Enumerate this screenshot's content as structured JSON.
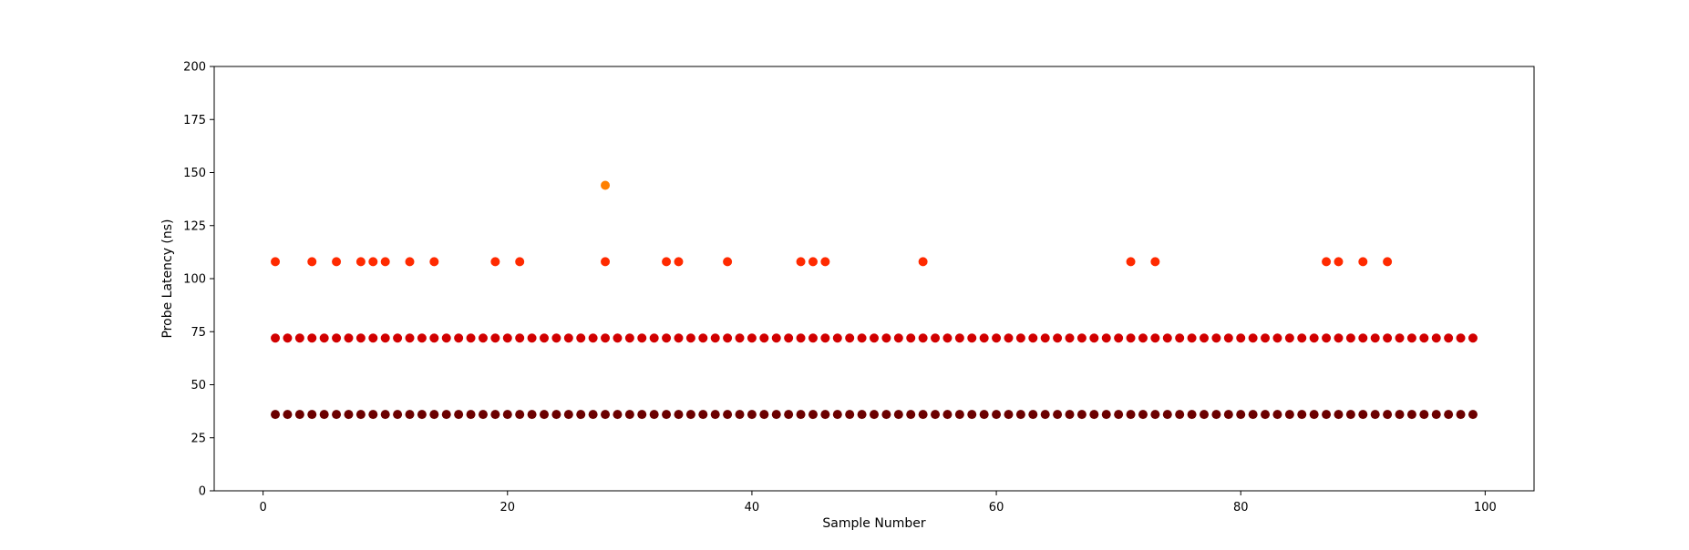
{
  "chart_data": {
    "type": "scatter",
    "title": "",
    "xlabel": "Sample Number",
    "ylabel": "Probe Latency (ns)",
    "xlim": [
      -4,
      104
    ],
    "ylim": [
      0,
      200
    ],
    "x_ticks": [
      0,
      20,
      40,
      60,
      80,
      100
    ],
    "y_ticks": [
      0,
      25,
      50,
      75,
      100,
      125,
      150,
      175,
      200
    ],
    "grid": false,
    "legend": "none",
    "colors": {
      "low": "#6b0000",
      "mid": "#d10000",
      "high": "#ff2a00",
      "peak": "#ff8000"
    },
    "x_samples": [
      1,
      2,
      3,
      4,
      5,
      6,
      7,
      8,
      9,
      10,
      11,
      12,
      13,
      14,
      15,
      16,
      17,
      18,
      19,
      20,
      21,
      22,
      23,
      24,
      25,
      26,
      27,
      28,
      29,
      30,
      31,
      32,
      33,
      34,
      35,
      36,
      37,
      38,
      39,
      40,
      41,
      42,
      43,
      44,
      45,
      46,
      47,
      48,
      49,
      50,
      51,
      52,
      53,
      54,
      55,
      56,
      57,
      58,
      59,
      60,
      61,
      62,
      63,
      64,
      65,
      66,
      67,
      68,
      69,
      70,
      71,
      72,
      73,
      74,
      75,
      76,
      77,
      78,
      79,
      80,
      81,
      82,
      83,
      84,
      85,
      86,
      87,
      88,
      89,
      90,
      91,
      92,
      93,
      94,
      95,
      96,
      97,
      98,
      99
    ],
    "levels": [
      {
        "y": 36,
        "color_key": "low",
        "x": "all"
      },
      {
        "y": 72,
        "color_key": "mid",
        "x": "all"
      },
      {
        "y": 108,
        "color_key": "high",
        "x": [
          1,
          4,
          6,
          8,
          9,
          10,
          12,
          14,
          19,
          21,
          28,
          33,
          34,
          38,
          44,
          45,
          46,
          54,
          71,
          73,
          87,
          88,
          90,
          92
        ]
      },
      {
        "y": 144,
        "color_key": "peak",
        "x": [
          28
        ]
      }
    ]
  }
}
